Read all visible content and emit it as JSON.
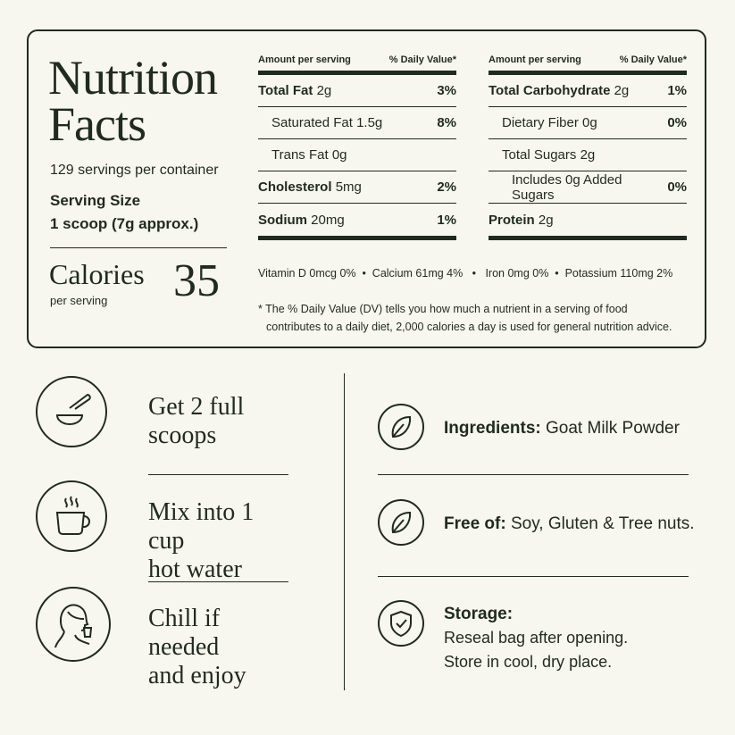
{
  "label": {
    "title_line1": "Nutrition",
    "title_line2": "Facts",
    "servings": "129 servings per container",
    "serving_size_label": "Serving Size",
    "serving_size_value": "1 scoop (7g approx.)",
    "calories_label": "Calories",
    "calories_sub": "per serving",
    "calories_value": "35",
    "amount_header": "Amount per serving",
    "dv_header": "% Daily Value*",
    "left_rows": [
      {
        "name": "Total Fat",
        "amount": "2g",
        "pct": "3%"
      },
      {
        "name": "Saturated Fat",
        "amount": "1.5g",
        "pct": "8%"
      },
      {
        "name": "Trans Fat",
        "amount": "0g",
        "pct": ""
      },
      {
        "name": "Cholesterol",
        "amount": "5mg",
        "pct": "2%"
      },
      {
        "name": "Sodium",
        "amount": "20mg",
        "pct": "1%"
      }
    ],
    "right_rows": [
      {
        "name": "Total Carbohydrate",
        "amount": "2g",
        "pct": "1%"
      },
      {
        "name": "Dietary Fiber",
        "amount": "0g",
        "pct": "0%"
      },
      {
        "name": "Total Sugars",
        "amount": "2g",
        "pct": ""
      },
      {
        "name": "Includes 0g Added Sugars",
        "amount": "",
        "pct": "0%"
      },
      {
        "name": "Protein",
        "amount": "2g",
        "pct": ""
      }
    ],
    "vitamins": "Vitamin D 0mcg 0%  •  Calcium 61mg 4%   •   Iron 0mg 0%  •  Potassium 110mg 2%",
    "footnote_line1": "* The % Daily Value (DV) tells you how much a nutrient in a serving of food",
    "footnote_line2": "contributes to a daily diet, 2,000 calories a day is used for general nutrition advice."
  },
  "steps": [
    {
      "line1": "Get 2 full",
      "line2": "scoops",
      "icon": "scoop-icon"
    },
    {
      "line1": "Mix into 1 cup",
      "line2": "hot water",
      "icon": "cup-icon"
    },
    {
      "line1": "Chill if needed",
      "line2": "and enjoy",
      "icon": "woman-drinking-icon"
    }
  ],
  "info": {
    "ingredients_label": "Ingredients:",
    "ingredients_value": "Goat Milk Powder",
    "free_label": "Free of:",
    "free_value": "Soy, Gluten & Tree nuts.",
    "storage_label": "Storage:",
    "storage_line1": "Reseal bag after opening.",
    "storage_line2": "Store in cool, dry place."
  },
  "colors": {
    "background": "#f8f7ef",
    "ink": "#1f2a20"
  }
}
